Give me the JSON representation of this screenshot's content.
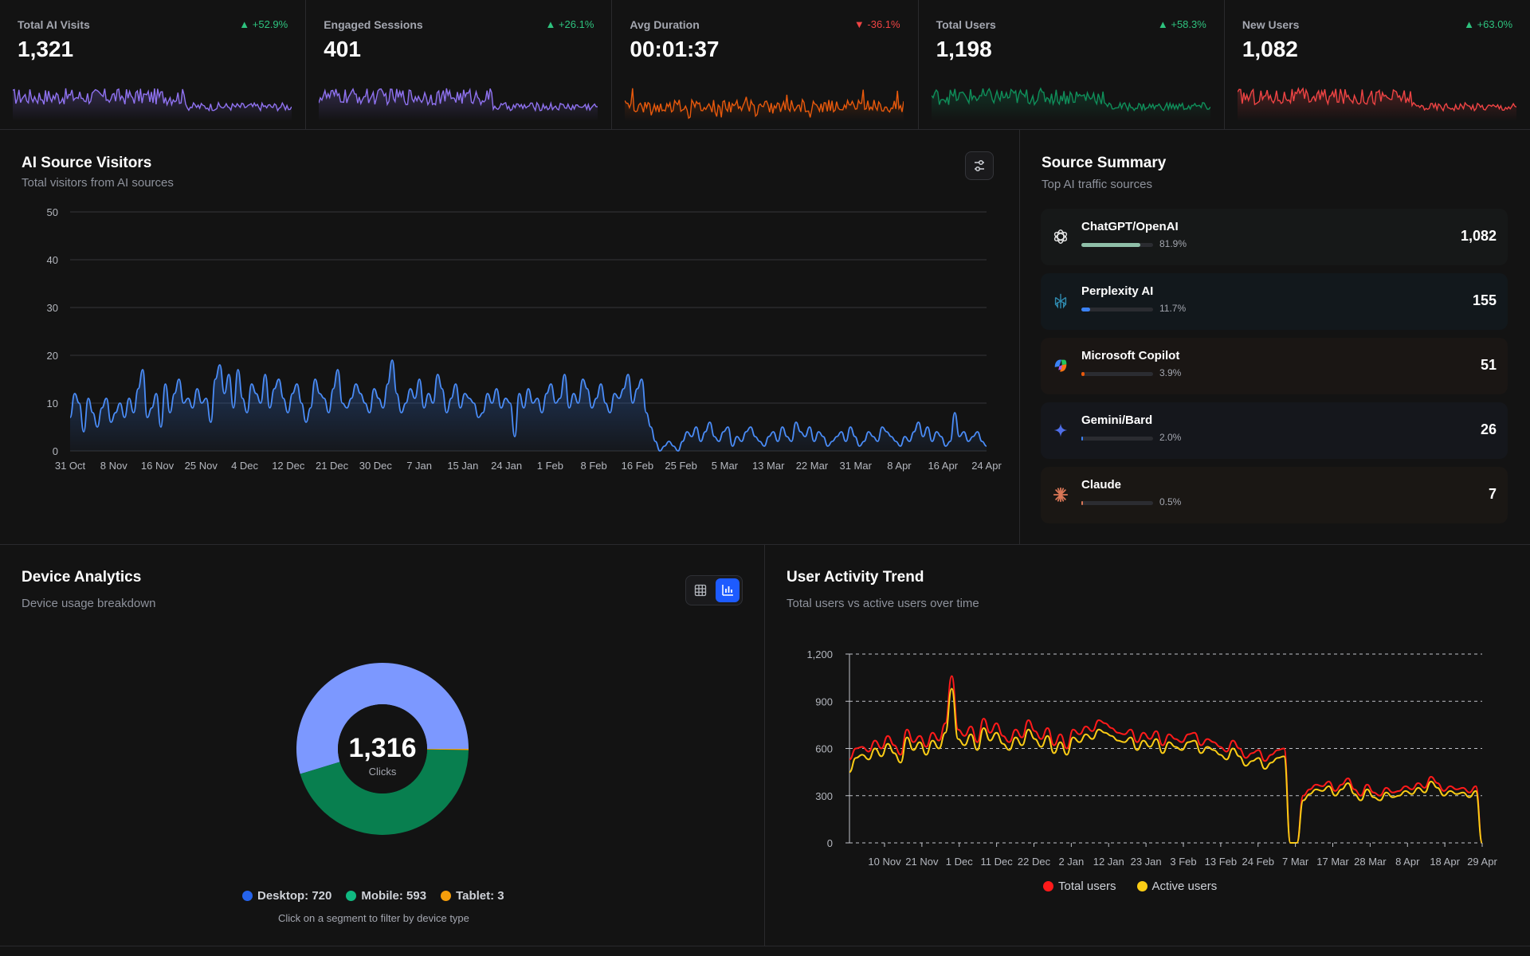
{
  "kpis": [
    {
      "title": "Total AI Visits",
      "value": "1,321",
      "change": "+52.9%",
      "dir": "up",
      "color": "#8f72f0"
    },
    {
      "title": "Engaged Sessions",
      "value": "401",
      "change": "+26.1%",
      "dir": "up",
      "color": "#8f72f0"
    },
    {
      "title": "Avg Duration",
      "value": "00:01:37",
      "change": "-36.1%",
      "dir": "down",
      "color": "#e8590c"
    },
    {
      "title": "Total Users",
      "value": "1,198",
      "change": "+58.3%",
      "dir": "up",
      "color": "#0f8f5a"
    },
    {
      "title": "New Users",
      "value": "1,082",
      "change": "+63.0%",
      "dir": "up",
      "color": "#ef4444"
    }
  ],
  "ai_visitors": {
    "title": "AI Source Visitors",
    "subtitle": "Total visitors from AI sources"
  },
  "source_summary": {
    "title": "Source Summary",
    "subtitle": "Top AI traffic sources",
    "items": [
      {
        "name": "ChatGPT/OpenAI",
        "pct": "81.9%",
        "fraction": 0.819,
        "count": "1,082",
        "bar": "#8fbfa8",
        "icon": "openai-logo-icon"
      },
      {
        "name": "Perplexity AI",
        "pct": "11.7%",
        "fraction": 0.117,
        "count": "155",
        "bar": "#3b82f6",
        "icon": "perplexity-logo-icon"
      },
      {
        "name": "Microsoft Copilot",
        "pct": "3.9%",
        "fraction": 0.039,
        "count": "51",
        "bar": "#e8590c",
        "icon": "copilot-logo-icon"
      },
      {
        "name": "Gemini/Bard",
        "pct": "2.0%",
        "fraction": 0.02,
        "count": "26",
        "bar": "#3b82f6",
        "icon": "gemini-logo-icon"
      },
      {
        "name": "Claude",
        "pct": "0.5%",
        "fraction": 0.005,
        "count": "7",
        "bar": "#d97757",
        "icon": "claude-logo-icon"
      }
    ]
  },
  "device_analytics": {
    "title": "Device Analytics",
    "subtitle": "Device usage breakdown",
    "total": "1,316",
    "total_label": "Clicks",
    "hint": "Click on a segment to filter by device type",
    "legend": [
      "Desktop: 720",
      "Mobile: 593",
      "Tablet: 3"
    ],
    "colors": {
      "desktop": "#7c98ff",
      "mobile": "#087f4f",
      "tablet": "#f59e0b"
    },
    "legend_colors": [
      "#2563eb",
      "#10b981",
      "#f59e0b"
    ]
  },
  "user_activity": {
    "title": "User Activity Trend",
    "subtitle": "Total users vs active users over time",
    "legend": [
      "Total users",
      "Active users"
    ],
    "colors": [
      "#ff1a1a",
      "#facc15"
    ]
  },
  "chart_data": [
    {
      "type": "area",
      "x_ticks": [
        "31 Oct",
        "8 Nov",
        "16 Nov",
        "25 Nov",
        "4 Dec",
        "12 Dec",
        "21 Dec",
        "30 Dec",
        "7 Jan",
        "15 Jan",
        "24 Jan",
        "1 Feb",
        "8 Feb",
        "16 Feb",
        "25 Feb",
        "5 Mar",
        "13 Mar",
        "22 Mar",
        "31 Mar",
        "8 Apr",
        "16 Apr",
        "24 Apr"
      ],
      "y_ticks": [
        "0",
        "10",
        "20",
        "30",
        "40",
        "50"
      ],
      "ylim": [
        0,
        50
      ],
      "grid": true,
      "series": [
        {
          "values": [
            7,
            12,
            10,
            4,
            11,
            8,
            5,
            9,
            11,
            6,
            8,
            10,
            7,
            11,
            8,
            13,
            17,
            7,
            9,
            12,
            5,
            14,
            8,
            12,
            15,
            10,
            11,
            9,
            13,
            10,
            11,
            6,
            15,
            18,
            12,
            16,
            9,
            17,
            11,
            8,
            14,
            12,
            10,
            16,
            9,
            13,
            15,
            11,
            8,
            12,
            14,
            10,
            6,
            9,
            15,
            12,
            11,
            8,
            13,
            17,
            10,
            9,
            11,
            14,
            12,
            10,
            8,
            13,
            11,
            9,
            14,
            19,
            12,
            8,
            10,
            13,
            11,
            15,
            9,
            12,
            10,
            16,
            13,
            8,
            11,
            14,
            9,
            12,
            11,
            10,
            7,
            8,
            12,
            10,
            13,
            9,
            11,
            10,
            3,
            12,
            9,
            13,
            10,
            11,
            8,
            12,
            14,
            10,
            11,
            16,
            9,
            12,
            10,
            15,
            13,
            9,
            11,
            14,
            10,
            8,
            12,
            11,
            13,
            16,
            10,
            13,
            15,
            8,
            5,
            2,
            0,
            1,
            2,
            1,
            0,
            2,
            4,
            3,
            5,
            2,
            4,
            6,
            3,
            2,
            4,
            5,
            1,
            3,
            2,
            4,
            5,
            3,
            2,
            1,
            3,
            4,
            2,
            5,
            3,
            2,
            6,
            4,
            3,
            5,
            2,
            4,
            3,
            1,
            2,
            3,
            4,
            2,
            5,
            3,
            1,
            2,
            4,
            3,
            2,
            5,
            4,
            3,
            2,
            1,
            3,
            2,
            4,
            6,
            3,
            5,
            2,
            4,
            3,
            1,
            2,
            8,
            3,
            4,
            2,
            3,
            4,
            2,
            1
          ]
        }
      ]
    },
    {
      "type": "pie",
      "labels": [
        "Desktop",
        "Mobile",
        "Tablet"
      ],
      "values": [
        720,
        593,
        3
      ],
      "center_value": "1,316",
      "center_label": "Clicks"
    },
    {
      "type": "line",
      "x_ticks": [
        "10 Nov",
        "21 Nov",
        "1 Dec",
        "11 Dec",
        "22 Dec",
        "2 Jan",
        "12 Jan",
        "23 Jan",
        "3 Feb",
        "13 Feb",
        "24 Feb",
        "7 Mar",
        "17 Mar",
        "28 Mar",
        "8 Apr",
        "18 Apr",
        "29 Apr"
      ],
      "y_ticks": [
        "0",
        "300",
        "600",
        "900",
        "1,200"
      ],
      "ylim": [
        0,
        1200
      ],
      "grid": true,
      "series": [
        {
          "name": "Total users",
          "values": [
            530,
            600,
            610,
            580,
            650,
            600,
            680,
            620,
            560,
            720,
            640,
            680,
            610,
            700,
            650,
            760,
            1060,
            720,
            680,
            740,
            640,
            790,
            700,
            760,
            680,
            640,
            720,
            670,
            780,
            710,
            660,
            730,
            620,
            690,
            600,
            720,
            690,
            740,
            710,
            780,
            760,
            730,
            700,
            690,
            720,
            640,
            700,
            660,
            710,
            620,
            690,
            660,
            640,
            690,
            700,
            620,
            660,
            640,
            610,
            580,
            650,
            600,
            540,
            570,
            590,
            520,
            560,
            590,
            600,
            0,
            0,
            300,
            340,
            370,
            360,
            390,
            330,
            370,
            410,
            340,
            300,
            370,
            320,
            300,
            350,
            320,
            330,
            360,
            340,
            380,
            350,
            420,
            380,
            330,
            360,
            340,
            350,
            320,
            360,
            0
          ]
        },
        {
          "name": "Active users",
          "values": [
            450,
            540,
            560,
            530,
            600,
            550,
            630,
            570,
            510,
            670,
            590,
            640,
            560,
            650,
            600,
            700,
            980,
            660,
            620,
            690,
            590,
            730,
            650,
            700,
            630,
            590,
            670,
            620,
            720,
            660,
            610,
            680,
            570,
            640,
            560,
            670,
            640,
            690,
            660,
            720,
            700,
            680,
            650,
            640,
            670,
            590,
            650,
            610,
            660,
            570,
            640,
            610,
            590,
            640,
            650,
            570,
            610,
            590,
            560,
            530,
            600,
            550,
            490,
            520,
            540,
            470,
            510,
            540,
            550,
            0,
            0,
            270,
            310,
            340,
            330,
            360,
            300,
            340,
            380,
            310,
            270,
            340,
            290,
            270,
            320,
            290,
            300,
            330,
            310,
            350,
            320,
            390,
            350,
            300,
            330,
            310,
            320,
            290,
            330,
            0
          ]
        }
      ]
    }
  ]
}
